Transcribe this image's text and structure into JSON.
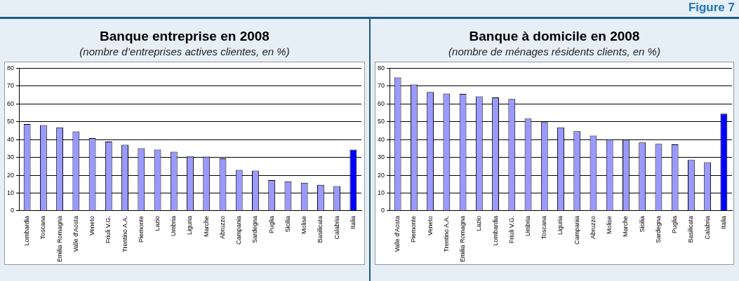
{
  "chart_data": [
    {
      "type": "bar",
      "title": "Banque entreprise en 2008",
      "subtitle": "(nombre d’entreprises actives clientes, en %)",
      "categories": [
        "Lombardia",
        "Toscana",
        "Emilia Romagna",
        "Valle d'Aosta",
        "Veneto",
        "Friuli V.G.",
        "Trentino A.A.",
        "Piemonte",
        "Lazio",
        "Umbria",
        "Liguria",
        "Marche",
        "Abruzzo",
        "Campania",
        "Sardegna",
        "Puglia",
        "Sicilia",
        "Molise",
        "Basilicata",
        "Calabria",
        "Italia"
      ],
      "values": [
        48.7,
        48.1,
        46.9,
        44.6,
        40.9,
        38.9,
        37.1,
        35.2,
        34.4,
        33.2,
        30.5,
        30.4,
        29.5,
        23,
        22.6,
        17.3,
        16.6,
        15.8,
        14.6,
        13.9,
        34.4
      ],
      "colors": [
        "#9999ff",
        "#9999ff",
        "#9999ff",
        "#9999ff",
        "#9999ff",
        "#9999ff",
        "#9999ff",
        "#9999ff",
        "#9999ff",
        "#9999ff",
        "#9999ff",
        "#9999ff",
        "#9999ff",
        "#9999ff",
        "#9999ff",
        "#9999ff",
        "#9999ff",
        "#9999ff",
        "#9999ff",
        "#9999ff",
        "#0000ff"
      ],
      "ylim": [
        0,
        80
      ],
      "yticks": [
        0,
        10,
        20,
        30,
        40,
        50,
        60,
        70,
        80
      ],
      "grid": "y",
      "legend": false
    },
    {
      "type": "bar",
      "title": "Banque à domicile en 2008",
      "subtitle": "(nombre de ménages résidents clients, en %)",
      "annotations": [
        "Figure 7"
      ],
      "categories": [
        "Valle d'Aosta",
        "Piemonte",
        "Veneto",
        "Trentino A.A.",
        "Emilia Romagna",
        "Lazio",
        "Lombardia",
        "Friuli V.G.",
        "Umbria",
        "Toscana",
        "Liguria",
        "Campania",
        "Abruzzo",
        "Molise",
        "Marche",
        "Sicilia",
        "Sardegna",
        "Puglia",
        "Basilicata",
        "Calabria",
        "Italia"
      ],
      "values": [
        74.9,
        70.9,
        66.7,
        65.8,
        65.6,
        64.2,
        63.7,
        62.8,
        51.8,
        49.8,
        46.9,
        44.7,
        42.2,
        40.2,
        39.9,
        38.4,
        37.6,
        37.3,
        28.6,
        27.3,
        54.5
      ],
      "colors": [
        "#9999ff",
        "#9999ff",
        "#9999ff",
        "#9999ff",
        "#9999ff",
        "#9999ff",
        "#9999ff",
        "#9999ff",
        "#9999ff",
        "#9999ff",
        "#9999ff",
        "#9999ff",
        "#9999ff",
        "#9999ff",
        "#9999ff",
        "#9999ff",
        "#9999ff",
        "#9999ff",
        "#9999ff",
        "#9999ff",
        "#0000ff"
      ],
      "ylim": [
        0,
        80
      ],
      "yticks": [
        0,
        10,
        20,
        30,
        40,
        50,
        60,
        70,
        80
      ],
      "grid": "y",
      "legend": false
    }
  ]
}
